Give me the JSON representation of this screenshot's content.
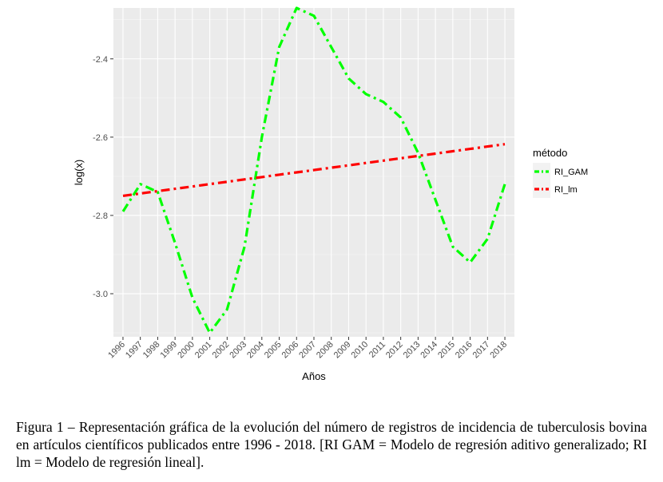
{
  "chart_data": {
    "type": "line",
    "xlabel": "Años",
    "ylabel": "log(x)",
    "x": [
      "1996",
      "1997",
      "1998",
      "1999",
      "2000",
      "2001",
      "2002",
      "2003",
      "2004",
      "2005",
      "2006",
      "2007",
      "2008",
      "2009",
      "2010",
      "2011",
      "2012",
      "2013",
      "2014",
      "2015",
      "2016",
      "2017",
      "2018"
    ],
    "ylim": [
      -3.11,
      -2.27
    ],
    "yticks": [
      -2.4,
      -2.6,
      -2.8,
      -3.0
    ],
    "ytick_labels": [
      "-2.4",
      "-2.6",
      "-2.8",
      "-3.0"
    ],
    "grid": true,
    "legend_title": "método",
    "legend_position": "right",
    "series": [
      {
        "name": "RI_GAM",
        "color": "#00ff00",
        "values": [
          -2.79,
          -2.72,
          -2.74,
          -2.87,
          -3.01,
          -3.1,
          -3.04,
          -2.88,
          -2.6,
          -2.37,
          -2.27,
          -2.29,
          -2.37,
          -2.45,
          -2.49,
          -2.51,
          -2.55,
          -2.64,
          -2.76,
          -2.88,
          -2.92,
          -2.86,
          -2.72
        ]
      },
      {
        "name": "RI_lm",
        "color": "#ff0000",
        "values": [
          -2.75,
          -2.744,
          -2.738,
          -2.732,
          -2.726,
          -2.72,
          -2.714,
          -2.708,
          -2.702,
          -2.696,
          -2.69,
          -2.684,
          -2.678,
          -2.672,
          -2.666,
          -2.66,
          -2.654,
          -2.648,
          -2.642,
          -2.636,
          -2.63,
          -2.624,
          -2.618
        ]
      }
    ]
  },
  "caption": "Figura 1 – Representación gráfica de la evolución del número de registros de incidencia de tuberculosis bovina en artículos científicos publicados entre 1996 - 2018. [RI GAM = Modelo de regresión aditivo generalizado; RI lm = Modelo de regresión lineal]."
}
